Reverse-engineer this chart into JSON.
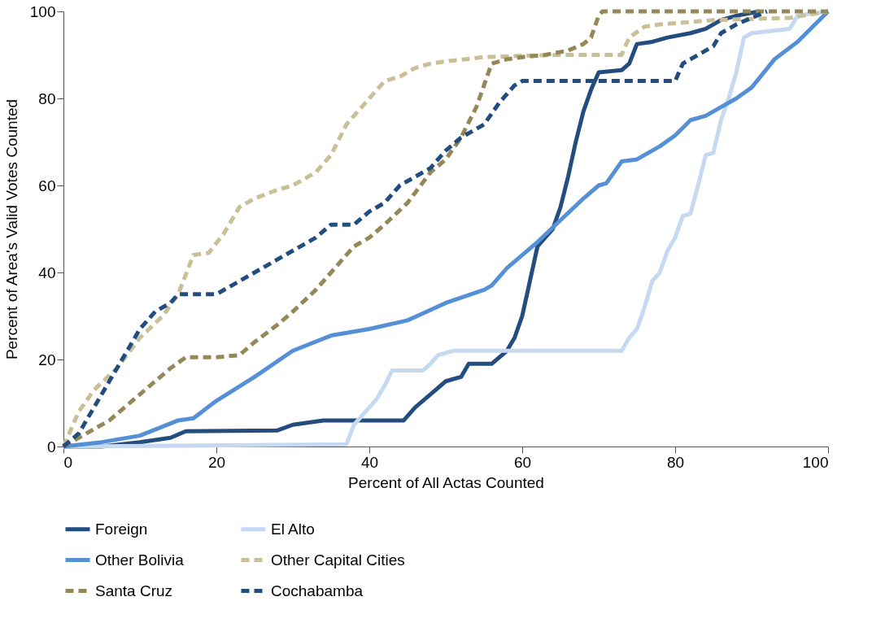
{
  "chart_data": {
    "type": "line",
    "xlabel": "Percent of All Actas Counted",
    "ylabel": "Percent of Area's Valid Votes Counted",
    "xlim": [
      0,
      100
    ],
    "ylim": [
      0,
      100
    ],
    "xticks": [
      0,
      20,
      40,
      60,
      80,
      100
    ],
    "yticks": [
      0,
      20,
      40,
      60,
      80,
      100
    ],
    "grid": false,
    "legend": "bottom",
    "marker": "none",
    "series": [
      {
        "name": "Foreign",
        "color": "#234d7e",
        "line_style": "solid",
        "x": [
          0,
          5,
          10,
          14,
          16,
          28,
          30,
          34,
          44.5,
          46,
          48,
          50,
          52,
          53,
          56,
          58,
          59,
          60,
          61,
          62,
          63,
          64,
          65,
          66,
          67,
          68,
          69,
          70,
          73,
          74,
          75,
          77,
          79,
          82,
          84,
          86,
          88,
          91
        ],
        "values": [
          0,
          0,
          1,
          2,
          3.5,
          3.7,
          5,
          6,
          6,
          9,
          12,
          15,
          16,
          19,
          19,
          22,
          25,
          30,
          38,
          46,
          48,
          50,
          55,
          62,
          70,
          77,
          82,
          86,
          86.5,
          88,
          92.5,
          93,
          94,
          95,
          96,
          98,
          99,
          100
        ]
      },
      {
        "name": "El Alto",
        "color": "#c5d9f0",
        "line_style": "solid",
        "x": [
          0,
          37,
          38,
          40,
          41,
          42,
          43,
          47,
          48,
          49,
          51,
          60,
          73,
          74,
          75,
          76,
          77,
          78,
          79,
          80,
          81,
          82,
          83,
          84,
          85,
          86,
          87,
          88,
          89,
          90,
          95,
          96,
          100
        ],
        "values": [
          0,
          0.5,
          5,
          9,
          11,
          14,
          17.5,
          17.5,
          19,
          21,
          22,
          22,
          22,
          25,
          27,
          32,
          38,
          40,
          45,
          48,
          53,
          53.5,
          60,
          67,
          67.5,
          75,
          80,
          86,
          94,
          95,
          96,
          99,
          100
        ]
      },
      {
        "name": "Other Bolivia",
        "color": "#5590d6",
        "line_style": "solid",
        "x": [
          0,
          5,
          10,
          15,
          17,
          20,
          25,
          30,
          35,
          40,
          45,
          50,
          55,
          56,
          58,
          60,
          62,
          65,
          68,
          70,
          71,
          73,
          75,
          78,
          80,
          82,
          84,
          86,
          88,
          90,
          93,
          96,
          100
        ],
        "values": [
          0,
          1,
          2.5,
          6,
          6.5,
          10.5,
          16,
          22,
          25.5,
          27,
          29,
          33,
          36,
          37,
          41,
          44,
          47,
          52,
          57,
          60,
          60.5,
          65.5,
          66,
          69,
          71.5,
          75,
          76,
          78,
          80,
          82.5,
          89,
          93,
          100
        ]
      },
      {
        "name": "Other Capital Cities",
        "color": "#c9bf98",
        "line_style": "dashed",
        "x": [
          0,
          2,
          4,
          7,
          10,
          13,
          15,
          17,
          19,
          21,
          23,
          25,
          28,
          30,
          33,
          35,
          37,
          40,
          42,
          44,
          46,
          48,
          50,
          55,
          60,
          65,
          73,
          74,
          76,
          78,
          85,
          95,
          100
        ],
        "values": [
          0,
          8,
          13,
          18,
          25,
          30,
          35,
          44,
          44.5,
          49,
          55,
          57,
          59,
          60,
          63,
          67,
          74,
          80,
          84,
          85,
          87,
          88,
          88.5,
          89.5,
          89.8,
          90,
          90,
          94,
          96.5,
          97,
          98,
          98.5,
          100
        ]
      },
      {
        "name": "Santa Cruz",
        "color": "#958858",
        "line_style": "dashed",
        "x": [
          0,
          3,
          6,
          10,
          14,
          16,
          20,
          23,
          25,
          28,
          30,
          33,
          36,
          38,
          40,
          42,
          45,
          48,
          50,
          52,
          54,
          55,
          56,
          58,
          60,
          63,
          66,
          68,
          69,
          70,
          70.5,
          95,
          100
        ],
        "values": [
          0,
          3,
          6,
          12,
          18,
          20.5,
          20.5,
          21,
          24,
          28,
          31,
          36,
          42,
          46,
          48,
          51,
          56,
          63,
          66,
          71,
          78,
          83,
          88,
          89,
          89.5,
          90,
          91,
          92.5,
          94,
          99,
          100,
          100,
          100
        ]
      },
      {
        "name": "Cochabamba",
        "color": "#234d7e",
        "line_style": "dashed",
        "x": [
          0,
          2,
          4,
          6,
          8,
          10,
          12,
          14,
          15,
          20,
          22,
          25,
          28,
          30,
          33,
          35,
          38,
          40,
          42,
          44,
          46,
          48,
          50,
          52,
          55,
          57,
          59,
          60,
          80,
          81,
          83,
          85,
          86,
          88,
          90,
          92
        ],
        "values": [
          0,
          3,
          9,
          15,
          21,
          27,
          31,
          33,
          35,
          35,
          37,
          40,
          43,
          45,
          48,
          51,
          51,
          54,
          56,
          60,
          62,
          64,
          68,
          71,
          74,
          79,
          83,
          84,
          84,
          88,
          90,
          92,
          95,
          97,
          98.5,
          100
        ]
      }
    ]
  }
}
